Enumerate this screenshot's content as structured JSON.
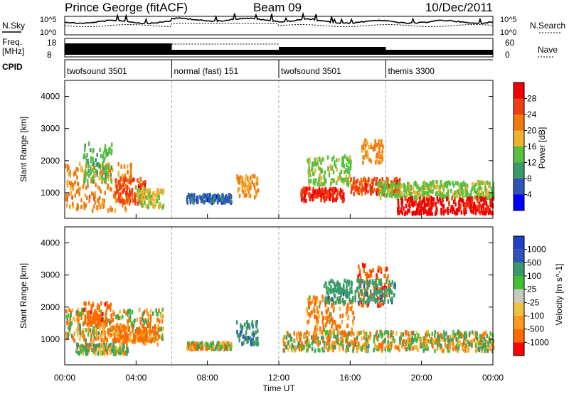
{
  "header": {
    "station": "Prince George (fitACF)",
    "beam": "Beam 09",
    "date": "10/Dec/2011"
  },
  "noise_panel": {
    "left_label": "N.Sky",
    "left_ticks": [
      "10^5",
      "10^0"
    ],
    "right_label": "N.Search",
    "right_ticks": [
      "10^5",
      "10^0"
    ]
  },
  "freq_panel": {
    "left_label_1": "Freq.",
    "left_label_2": "[MHz]",
    "left_ticks": [
      "18",
      "8"
    ],
    "right_label": "Nave",
    "right_ticks": [
      "60",
      "0"
    ]
  },
  "cpid": {
    "label": "CPID",
    "segments": [
      {
        "start": 0,
        "end": 6,
        "name": "twofsound 3501"
      },
      {
        "start": 6,
        "end": 12,
        "name": "normal (fast) 151"
      },
      {
        "start": 12,
        "end": 18,
        "name": "twofsound 3501"
      },
      {
        "start": 18,
        "end": 24,
        "name": "themis 3300"
      }
    ]
  },
  "colors": {
    "power_scale": [
      "#0000ff",
      "#2e55b5",
      "#3a9a6a",
      "#56c040",
      "#f0b030",
      "#f07a10",
      "#f03c10",
      "#f00000"
    ],
    "velocity_scale": [
      "#ff0000",
      "#ff6a00",
      "#ff9a20",
      "#f0c040",
      "#c8c8c0",
      "#40c030",
      "#3a9a6a",
      "#2e55b5",
      "#2040c8"
    ]
  },
  "chart_data": {
    "type": "heatmap",
    "x_unit": "UT hours",
    "xlim": [
      0,
      24
    ],
    "xticks": [
      "00:00",
      "04:00",
      "08:00",
      "12:00",
      "16:00",
      "20:00",
      "00:00"
    ],
    "xlabel": "Time UT",
    "ylabel": "Slant Range [km]",
    "ylim": [
      200,
      4500
    ],
    "yticks": [
      "1000",
      "2000",
      "3000",
      "4000"
    ],
    "panels": [
      {
        "name": "power",
        "colorbar_label": "Power [dB]",
        "colorbar_ticks": [
          "28",
          "24",
          "20",
          "16",
          "12",
          "8",
          "4"
        ],
        "zlim": [
          0,
          30
        ],
        "regions": [
          {
            "t": [
              0.0,
              3.8
            ],
            "r": [
              500,
              2000
            ],
            "z": 20
          },
          {
            "t": [
              1.0,
              2.6
            ],
            "r": [
              1400,
              2600
            ],
            "z": 12
          },
          {
            "t": [
              2.8,
              4.5
            ],
            "r": [
              700,
              1500
            ],
            "z": 24
          },
          {
            "t": [
              4.0,
              5.5
            ],
            "r": [
              600,
              1200
            ],
            "z": 16
          },
          {
            "t": [
              6.8,
              9.3
            ],
            "r": [
              750,
              1000
            ],
            "z": 6
          },
          {
            "t": [
              9.6,
              10.8
            ],
            "r": [
              900,
              1600
            ],
            "z": 18
          },
          {
            "t": [
              13.2,
              15.6
            ],
            "r": [
              800,
              1200
            ],
            "z": 26
          },
          {
            "t": [
              13.5,
              16.0
            ],
            "r": [
              1300,
              2200
            ],
            "z": 14
          },
          {
            "t": [
              16.0,
              18.8
            ],
            "r": [
              1000,
              1500
            ],
            "z": 24
          },
          {
            "t": [
              16.6,
              17.8
            ],
            "r": [
              2000,
              2700
            ],
            "z": 20
          },
          {
            "t": [
              17.5,
              24.0
            ],
            "r": [
              900,
              1400
            ],
            "z": 14
          },
          {
            "t": [
              18.6,
              24.0
            ],
            "r": [
              400,
              900
            ],
            "z": 28
          }
        ]
      },
      {
        "name": "velocity",
        "colorbar_label": "Velocity [m s^-1]",
        "colorbar_ticks": [
          "1000",
          "500",
          "100",
          "25",
          "-25",
          "-100",
          "-500",
          "-1000"
        ],
        "zlim": [
          -1200,
          1200
        ],
        "regions": [
          {
            "t": [
              0.0,
              5.5
            ],
            "r": [
              1000,
              2000
            ],
            "z": 0
          },
          {
            "t": [
              1.0,
              2.6
            ],
            "r": [
              1500,
              2200
            ],
            "z": -300
          },
          {
            "t": [
              2.0,
              5.2
            ],
            "r": [
              900,
              1500
            ],
            "z": -200
          },
          {
            "t": [
              0.6,
              3.5
            ],
            "r": [
              600,
              900
            ],
            "z": 60
          },
          {
            "t": [
              6.8,
              9.3
            ],
            "r": [
              750,
              950
            ],
            "z": 0
          },
          {
            "t": [
              9.6,
              10.8
            ],
            "r": [
              900,
              1600
            ],
            "z": 400
          },
          {
            "t": [
              12.2,
              24.0
            ],
            "r": [
              700,
              1300
            ],
            "z": 0
          },
          {
            "t": [
              13.5,
              16.2
            ],
            "r": [
              1200,
              2400
            ],
            "z": -150
          },
          {
            "t": [
              16.4,
              18.2
            ],
            "r": [
              2100,
              3400
            ],
            "z": -400
          },
          {
            "t": [
              14.5,
              18.5
            ],
            "r": [
              2200,
              2900
            ],
            "z": 300
          }
        ]
      }
    ]
  }
}
